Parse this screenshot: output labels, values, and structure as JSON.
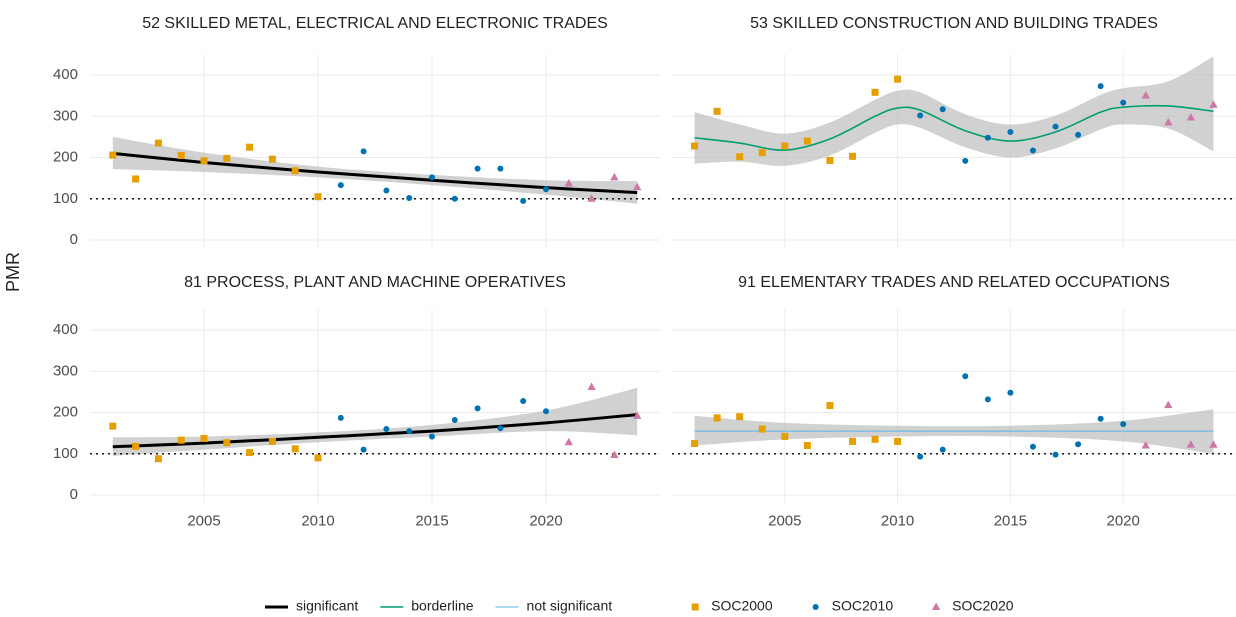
{
  "y_label": "PMR",
  "legend": {
    "lines": [
      {
        "name": "significant",
        "color": "#000000",
        "width": 3
      },
      {
        "name": "borderline",
        "color": "#009E73",
        "width": 1.6
      },
      {
        "name": "not significant",
        "color": "#56B4E9",
        "width": 1
      }
    ],
    "points": [
      {
        "name": "SOC2000",
        "color": "#E69F00",
        "shape": "square"
      },
      {
        "name": "SOC2010",
        "color": "#0072B2",
        "shape": "circle"
      },
      {
        "name": "SOC2020",
        "color": "#CC79A7",
        "shape": "triangle"
      }
    ]
  },
  "chart_data": [
    {
      "type": "scatter",
      "title": "52 SKILLED METAL, ELECTRICAL AND ELECTRONIC TRADES",
      "xlim": [
        2000,
        2025
      ],
      "ylim": [
        -20,
        450
      ],
      "xticks": [
        2005,
        2010,
        2015,
        2020
      ],
      "yticks": [
        0,
        100,
        200,
        300,
        400
      ],
      "hline": 100,
      "series": [
        {
          "x": [
            2001,
            2002,
            2003,
            2004,
            2005,
            2006,
            2007,
            2008,
            2009,
            2010
          ],
          "values": [
            206,
            148,
            235,
            205,
            192,
            198,
            225,
            196,
            168,
            105
          ]
        },
        {
          "x": [
            2011,
            2012,
            2013,
            2014,
            2015,
            2016,
            2017,
            2018,
            2019,
            2020
          ],
          "values": [
            133,
            215,
            120,
            102,
            152,
            100,
            173,
            173,
            95,
            123
          ]
        },
        {
          "x": [
            2021,
            2022,
            2023,
            2024
          ],
          "values": [
            137,
            100,
            152,
            128
          ]
        }
      ],
      "fit": {
        "color": "#000000",
        "width": 3,
        "x": [
          2001,
          2005,
          2010,
          2015,
          2020,
          2024
        ],
        "values": [
          210,
          188,
          165,
          145,
          127,
          115
        ],
        "lower": [
          172,
          165,
          152,
          133,
          110,
          88
        ],
        "upper": [
          250,
          212,
          178,
          158,
          145,
          143
        ]
      }
    },
    {
      "type": "scatter",
      "title": "53 SKILLED CONSTRUCTION AND BUILDING TRADES",
      "xlim": [
        2000,
        2025
      ],
      "ylim": [
        -20,
        450
      ],
      "xticks": [
        2005,
        2010,
        2015,
        2020
      ],
      "yticks": [
        0,
        100,
        200,
        300,
        400
      ],
      "hline": 100,
      "series": [
        {
          "x": [
            2001,
            2002,
            2003,
            2004,
            2005,
            2006,
            2007,
            2008,
            2009,
            2010
          ],
          "values": [
            228,
            312,
            202,
            212,
            228,
            240,
            193,
            203,
            358,
            390
          ]
        },
        {
          "x": [
            2011,
            2012,
            2013,
            2014,
            2015,
            2016,
            2017,
            2018,
            2019,
            2020
          ],
          "values": [
            302,
            317,
            192,
            248,
            262,
            217,
            275,
            255,
            373,
            333
          ]
        },
        {
          "x": [
            2021,
            2022,
            2023,
            2024
          ],
          "values": [
            350,
            285,
            297,
            328
          ]
        }
      ],
      "fit": {
        "color": "#009E73",
        "width": 1.6,
        "x": [
          2001,
          2003,
          2005,
          2007,
          2009,
          2010,
          2011,
          2013,
          2015,
          2017,
          2019,
          2020,
          2022,
          2024
        ],
        "values": [
          248,
          235,
          218,
          245,
          300,
          320,
          315,
          265,
          240,
          262,
          310,
          322,
          325,
          312
        ],
        "lower": [
          185,
          190,
          180,
          205,
          260,
          280,
          272,
          225,
          200,
          222,
          268,
          280,
          270,
          215
        ],
        "upper": [
          310,
          280,
          258,
          285,
          340,
          362,
          358,
          305,
          280,
          302,
          352,
          368,
          385,
          445
        ]
      }
    },
    {
      "type": "scatter",
      "title": "81 PROCESS, PLANT AND MACHINE OPERATIVES",
      "xlim": [
        2000,
        2025
      ],
      "ylim": [
        -20,
        450
      ],
      "xticks": [
        2005,
        2010,
        2015,
        2020
      ],
      "yticks": [
        0,
        100,
        200,
        300,
        400
      ],
      "hline": 100,
      "series": [
        {
          "x": [
            2001,
            2002,
            2003,
            2004,
            2005,
            2006,
            2007,
            2008,
            2009,
            2010
          ],
          "values": [
            167,
            118,
            88,
            133,
            137,
            127,
            103,
            130,
            112,
            90
          ]
        },
        {
          "x": [
            2011,
            2012,
            2013,
            2014,
            2015,
            2016,
            2017,
            2018,
            2019,
            2020
          ],
          "values": [
            187,
            110,
            160,
            155,
            142,
            182,
            210,
            162,
            228,
            203
          ]
        },
        {
          "x": [
            2021,
            2022,
            2023,
            2024
          ],
          "values": [
            128,
            262,
            97,
            192
          ]
        }
      ],
      "fit": {
        "color": "#000000",
        "width": 3,
        "x": [
          2001,
          2005,
          2010,
          2015,
          2020,
          2024
        ],
        "values": [
          117,
          126,
          140,
          155,
          175,
          195
        ],
        "lower": [
          95,
          110,
          128,
          142,
          155,
          145
        ],
        "upper": [
          140,
          142,
          152,
          170,
          205,
          260
        ]
      }
    },
    {
      "type": "scatter",
      "title": "91 ELEMENTARY TRADES AND RELATED OCCUPATIONS",
      "xlim": [
        2000,
        2025
      ],
      "ylim": [
        -20,
        450
      ],
      "xticks": [
        2005,
        2010,
        2015,
        2020
      ],
      "yticks": [
        0,
        100,
        200,
        300,
        400
      ],
      "hline": 100,
      "series": [
        {
          "x": [
            2001,
            2002,
            2003,
            2004,
            2005,
            2006,
            2007,
            2008,
            2009,
            2010
          ],
          "values": [
            125,
            187,
            190,
            160,
            142,
            120,
            217,
            130,
            135,
            130
          ]
        },
        {
          "x": [
            2011,
            2012,
            2013,
            2014,
            2015,
            2016,
            2017,
            2018,
            2019,
            2020
          ],
          "values": [
            93,
            110,
            288,
            232,
            248,
            117,
            98,
            123,
            185,
            172
          ]
        },
        {
          "x": [
            2021,
            2022,
            2023,
            2024
          ],
          "values": [
            120,
            218,
            122,
            122
          ]
        }
      ],
      "fit": {
        "color": "#56B4E9",
        "width": 1,
        "x": [
          2001,
          2005,
          2010,
          2015,
          2020,
          2024
        ],
        "values": [
          155,
          155,
          155,
          155,
          155,
          155
        ],
        "lower": [
          120,
          135,
          142,
          142,
          130,
          100
        ],
        "upper": [
          192,
          175,
          168,
          168,
          180,
          208
        ]
      }
    }
  ]
}
